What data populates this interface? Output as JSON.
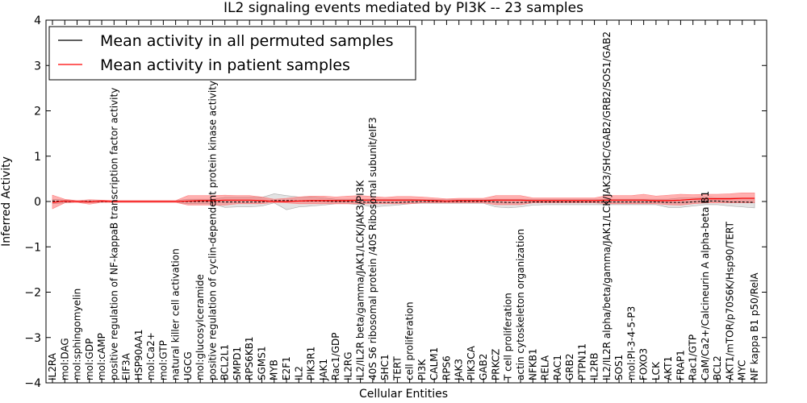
{
  "chart_data": {
    "type": "line",
    "title": "IL2 signaling events mediated by PI3K -- 23 samples",
    "xlabel": "Cellular Entities",
    "ylabel": "Inferred Activity",
    "ylim": [
      -4,
      4
    ],
    "yticks": [
      -4,
      -3,
      -2,
      -1,
      0,
      1,
      2,
      3,
      4
    ],
    "ytick_labels": [
      "−4",
      "−3",
      "−2",
      "−1",
      "0",
      "1",
      "2",
      "3",
      "4"
    ],
    "legend_position": "upper-left",
    "categories": [
      "IL2RA",
      "mol:DAG",
      "mol:sphingomyelin",
      "mol:GDP",
      "mol:cAMP",
      "positive regulation of NF-kappaB transcription factor activity",
      "EIF3A",
      "HSP90AA1",
      "mol:Ca2+",
      "mol:GTP",
      "natural killer cell activation",
      "UGCG",
      "mol:glucosylceramide",
      "positive regulation of cyclin-dependent protein kinase activity",
      "BCL2L1",
      "SMPD1",
      "RPS6KB1",
      "SGMS1",
      "MYB",
      "E2F1",
      "IL2",
      "PIK3R1",
      "JAK1",
      "Rac1/GDP",
      "IL2RG",
      "IL2/IL2R beta/gamma/JAK1/LCK/JAK3/PI3K",
      "40S S6 ribosomal protein /40S Ribosomal subunit/eIF3",
      "SHC1",
      "TERT",
      "cell proliferation",
      "PI3K",
      "CALM1",
      "RPS6",
      "JAK3",
      "PIK3CA",
      "GAB2",
      "PRKCZ",
      "T cell proliferation",
      "actin cytoskeleton organization",
      "NFKB1",
      "RELA",
      "RAC1",
      "GRB2",
      "PTPN11",
      "IL2RB",
      "IL2/IL2R alpha/beta/gamma/JAK1/LCK/JAK3/SHC/GAB2/GRB2/SOS1/GAB2",
      "SOS1",
      "mol:PI-3-4-5-P3",
      "FOXO3",
      "LCK",
      "AKT1",
      "FRAP1",
      "Rac1/GTP",
      "CaM/Ca2+/Calcineurin A alpha-beta B1",
      "BCL2",
      "AKT1/mTOR/p70S6K/Hsp90/TERT",
      "MYC",
      "NF kappa B1 p50/RelA"
    ],
    "series": [
      {
        "name": "Mean activity in all permuted samples",
        "color": "#000000",
        "values": [
          0.01,
          0.0,
          0.0,
          0.0,
          0.0,
          0.0,
          0.0,
          0.0,
          0.0,
          0.0,
          0.0,
          0.0,
          0.0,
          0.0,
          -0.01,
          -0.01,
          -0.01,
          -0.01,
          0.02,
          0.02,
          0.01,
          0.01,
          0.01,
          0.0,
          0.0,
          -0.01,
          -0.02,
          -0.02,
          -0.02,
          -0.01,
          0.0,
          0.0,
          0.0,
          0.0,
          0.0,
          0.0,
          -0.01,
          -0.02,
          -0.02,
          -0.01,
          -0.01,
          -0.01,
          -0.01,
          -0.01,
          -0.01,
          -0.01,
          -0.01,
          -0.01,
          -0.01,
          -0.01,
          -0.02,
          -0.02,
          -0.01,
          0.01,
          0.01,
          -0.01,
          -0.01,
          -0.02
        ],
        "band_low": [
          -0.05,
          -0.03,
          -0.02,
          -0.02,
          -0.02,
          -0.02,
          -0.02,
          -0.02,
          -0.02,
          -0.02,
          -0.02,
          -0.05,
          -0.05,
          -0.05,
          -0.13,
          -0.12,
          -0.12,
          -0.1,
          -0.03,
          -0.18,
          -0.12,
          -0.1,
          -0.08,
          -0.05,
          -0.05,
          -0.07,
          -0.12,
          -0.1,
          -0.08,
          -0.05,
          -0.04,
          -0.04,
          -0.04,
          -0.04,
          -0.04,
          -0.04,
          -0.12,
          -0.14,
          -0.12,
          -0.08,
          -0.07,
          -0.07,
          -0.07,
          -0.07,
          -0.07,
          -0.07,
          -0.07,
          -0.07,
          -0.07,
          -0.07,
          -0.13,
          -0.13,
          -0.1,
          -0.07,
          -0.07,
          -0.1,
          -0.12,
          -0.14
        ],
        "band_high": [
          0.05,
          0.03,
          0.02,
          0.02,
          0.02,
          0.02,
          0.02,
          0.02,
          0.02,
          0.02,
          0.02,
          0.05,
          0.05,
          0.05,
          0.09,
          0.09,
          0.09,
          0.09,
          0.17,
          0.13,
          0.1,
          0.1,
          0.08,
          0.05,
          0.05,
          0.05,
          0.05,
          0.05,
          0.05,
          0.05,
          0.04,
          0.04,
          0.04,
          0.04,
          0.04,
          0.04,
          0.05,
          0.05,
          0.05,
          0.05,
          0.05,
          0.05,
          0.05,
          0.05,
          0.05,
          0.05,
          0.05,
          0.05,
          0.05,
          0.05,
          0.05,
          0.08,
          0.08,
          0.1,
          0.08,
          0.08,
          0.08,
          0.08
        ]
      },
      {
        "name": "Mean activity in patient samples",
        "color": "#ff0000",
        "values": [
          -0.02,
          0.01,
          0.0,
          -0.01,
          0.01,
          0.0,
          0.0,
          0.0,
          0.0,
          0.0,
          0.0,
          0.01,
          0.02,
          0.02,
          0.03,
          0.03,
          0.03,
          0.02,
          0.0,
          0.0,
          0.01,
          0.02,
          0.02,
          0.02,
          0.02,
          0.03,
          0.03,
          0.03,
          0.03,
          0.03,
          0.03,
          0.02,
          0.01,
          0.02,
          0.02,
          0.02,
          0.03,
          0.03,
          0.03,
          0.02,
          0.02,
          0.02,
          0.02,
          0.02,
          0.02,
          0.03,
          0.03,
          0.03,
          0.03,
          0.02,
          0.02,
          0.03,
          0.05,
          0.06,
          0.06,
          0.06,
          0.07,
          0.07
        ],
        "band_low": [
          -0.16,
          -0.03,
          -0.02,
          -0.06,
          -0.02,
          -0.02,
          -0.02,
          -0.02,
          -0.02,
          -0.02,
          -0.02,
          -0.08,
          -0.08,
          -0.08,
          -0.08,
          -0.05,
          -0.05,
          -0.05,
          -0.02,
          -0.03,
          -0.05,
          -0.05,
          -0.05,
          -0.05,
          -0.05,
          -0.05,
          -0.05,
          -0.05,
          -0.05,
          -0.05,
          -0.03,
          -0.03,
          -0.03,
          -0.03,
          -0.03,
          -0.03,
          -0.07,
          -0.07,
          -0.07,
          -0.03,
          -0.03,
          -0.03,
          -0.03,
          -0.03,
          -0.03,
          -0.05,
          -0.05,
          -0.05,
          -0.05,
          -0.05,
          -0.07,
          -0.08,
          -0.05,
          -0.03,
          -0.03,
          -0.03,
          -0.03,
          -0.03
        ],
        "band_high": [
          0.14,
          0.05,
          0.02,
          0.04,
          0.03,
          0.02,
          0.02,
          0.02,
          0.02,
          0.02,
          0.02,
          0.13,
          0.13,
          0.13,
          0.14,
          0.13,
          0.13,
          0.1,
          0.05,
          0.07,
          0.1,
          0.12,
          0.12,
          0.1,
          0.12,
          0.13,
          0.11,
          0.09,
          0.11,
          0.11,
          0.1,
          0.08,
          0.06,
          0.07,
          0.07,
          0.07,
          0.13,
          0.13,
          0.13,
          0.08,
          0.08,
          0.08,
          0.08,
          0.08,
          0.08,
          0.13,
          0.13,
          0.13,
          0.16,
          0.12,
          0.14,
          0.16,
          0.15,
          0.16,
          0.16,
          0.17,
          0.19,
          0.19
        ]
      }
    ]
  }
}
